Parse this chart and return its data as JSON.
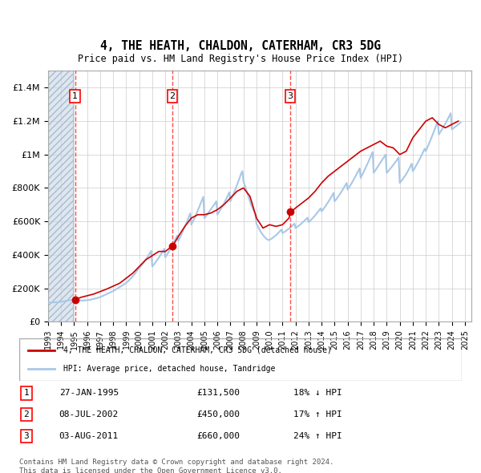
{
  "title": "4, THE HEATH, CHALDON, CATERHAM, CR3 5DG",
  "subtitle": "Price paid vs. HM Land Registry's House Price Index (HPI)",
  "title_fontsize": 11,
  "subtitle_fontsize": 9,
  "xlabel": "",
  "ylabel": "",
  "ylim": [
    0,
    1500000
  ],
  "yticks": [
    0,
    200000,
    400000,
    600000,
    800000,
    1000000,
    1200000,
    1400000
  ],
  "ytick_labels": [
    "£0",
    "£200K",
    "£400K",
    "£600K",
    "£800K",
    "£1M",
    "£1.2M",
    "£1.4M"
  ],
  "x_start_year": 1993,
  "x_end_year": 2025,
  "hpi_color": "#a8c8e8",
  "price_color": "#cc0000",
  "hatch_color": "#c8d8e8",
  "background_color": "#dce8f0",
  "plot_bg_color": "#ffffff",
  "grid_color": "#cccccc",
  "sale_dates": [
    "1995-01-27",
    "2002-07-08",
    "2011-08-03"
  ],
  "sale_prices": [
    131500,
    450000,
    660000
  ],
  "sale_labels": [
    "1",
    "2",
    "3"
  ],
  "sale_label_date_texts": [
    "27-JAN-1995",
    "08-JUL-2002",
    "03-AUG-2011"
  ],
  "sale_price_texts": [
    "£131,500",
    "£450,000",
    "£660,000"
  ],
  "sale_hpi_texts": [
    "18% ↓ HPI",
    "17% ↑ HPI",
    "24% ↑ HPI"
  ],
  "legend_label1": "4, THE HEATH, CHALDON, CATERHAM, CR3 5DG (detached house)",
  "legend_label2": "HPI: Average price, detached house, Tandridge",
  "footer_text": "Contains HM Land Registry data © Crown copyright and database right 2024.\nThis data is licensed under the Open Government Licence v3.0.",
  "hpi_data": {
    "years_months": [
      1993.0,
      1993.083,
      1993.167,
      1993.25,
      1993.333,
      1993.417,
      1993.5,
      1993.583,
      1993.667,
      1993.75,
      1993.833,
      1993.917,
      1994.0,
      1994.083,
      1994.167,
      1994.25,
      1994.333,
      1994.417,
      1994.5,
      1994.583,
      1994.667,
      1994.75,
      1994.833,
      1994.917,
      1995.0,
      1995.083,
      1995.167,
      1995.25,
      1995.333,
      1995.417,
      1995.5,
      1995.583,
      1995.667,
      1995.75,
      1995.833,
      1995.917,
      1996.0,
      1996.083,
      1996.167,
      1996.25,
      1996.333,
      1996.417,
      1996.5,
      1996.583,
      1996.667,
      1996.75,
      1996.833,
      1996.917,
      1997.0,
      1997.083,
      1997.167,
      1997.25,
      1997.333,
      1997.417,
      1997.5,
      1997.583,
      1997.667,
      1997.75,
      1997.833,
      1997.917,
      1998.0,
      1998.083,
      1998.167,
      1998.25,
      1998.333,
      1998.417,
      1998.5,
      1998.583,
      1998.667,
      1998.75,
      1998.833,
      1998.917,
      1999.0,
      1999.083,
      1999.167,
      1999.25,
      1999.333,
      1999.417,
      1999.5,
      1999.583,
      1999.667,
      1999.75,
      1999.833,
      1999.917,
      2000.0,
      2000.083,
      2000.167,
      2000.25,
      2000.333,
      2000.417,
      2000.5,
      2000.583,
      2000.667,
      2000.75,
      2000.833,
      2000.917,
      2001.0,
      2001.083,
      2001.167,
      2001.25,
      2001.333,
      2001.417,
      2001.5,
      2001.583,
      2001.667,
      2001.75,
      2001.833,
      2001.917,
      2002.0,
      2002.083,
      2002.167,
      2002.25,
      2002.333,
      2002.417,
      2002.5,
      2002.583,
      2002.667,
      2002.75,
      2002.833,
      2002.917,
      2003.0,
      2003.083,
      2003.167,
      2003.25,
      2003.333,
      2003.417,
      2003.5,
      2003.583,
      2003.667,
      2003.75,
      2003.833,
      2003.917,
      2004.0,
      2004.083,
      2004.167,
      2004.25,
      2004.333,
      2004.417,
      2004.5,
      2004.583,
      2004.667,
      2004.75,
      2004.833,
      2004.917,
      2005.0,
      2005.083,
      2005.167,
      2005.25,
      2005.333,
      2005.417,
      2005.5,
      2005.583,
      2005.667,
      2005.75,
      2005.833,
      2005.917,
      2006.0,
      2006.083,
      2006.167,
      2006.25,
      2006.333,
      2006.417,
      2006.5,
      2006.583,
      2006.667,
      2006.75,
      2006.833,
      2006.917,
      2007.0,
      2007.083,
      2007.167,
      2007.25,
      2007.333,
      2007.417,
      2007.5,
      2007.583,
      2007.667,
      2007.75,
      2007.833,
      2007.917,
      2008.0,
      2008.083,
      2008.167,
      2008.25,
      2008.333,
      2008.417,
      2008.5,
      2008.583,
      2008.667,
      2008.75,
      2008.833,
      2008.917,
      2009.0,
      2009.083,
      2009.167,
      2009.25,
      2009.333,
      2009.417,
      2009.5,
      2009.583,
      2009.667,
      2009.75,
      2009.833,
      2009.917,
      2010.0,
      2010.083,
      2010.167,
      2010.25,
      2010.333,
      2010.417,
      2010.5,
      2010.583,
      2010.667,
      2010.75,
      2010.833,
      2010.917,
      2011.0,
      2011.083,
      2011.167,
      2011.25,
      2011.333,
      2011.417,
      2011.5,
      2011.583,
      2011.667,
      2011.75,
      2011.833,
      2011.917,
      2012.0,
      2012.083,
      2012.167,
      2012.25,
      2012.333,
      2012.417,
      2012.5,
      2012.583,
      2012.667,
      2012.75,
      2012.833,
      2012.917,
      2013.0,
      2013.083,
      2013.167,
      2013.25,
      2013.333,
      2013.417,
      2013.5,
      2013.583,
      2013.667,
      2013.75,
      2013.833,
      2013.917,
      2014.0,
      2014.083,
      2014.167,
      2014.25,
      2014.333,
      2014.417,
      2014.5,
      2014.583,
      2014.667,
      2014.75,
      2014.833,
      2014.917,
      2015.0,
      2015.083,
      2015.167,
      2015.25,
      2015.333,
      2015.417,
      2015.5,
      2015.583,
      2015.667,
      2015.75,
      2015.833,
      2015.917,
      2016.0,
      2016.083,
      2016.167,
      2016.25,
      2016.333,
      2016.417,
      2016.5,
      2016.583,
      2016.667,
      2016.75,
      2016.833,
      2016.917,
      2017.0,
      2017.083,
      2017.167,
      2017.25,
      2017.333,
      2017.417,
      2017.5,
      2017.583,
      2017.667,
      2017.75,
      2017.833,
      2017.917,
      2018.0,
      2018.083,
      2018.167,
      2018.25,
      2018.333,
      2018.417,
      2018.5,
      2018.583,
      2018.667,
      2018.75,
      2018.833,
      2018.917,
      2019.0,
      2019.083,
      2019.167,
      2019.25,
      2019.333,
      2019.417,
      2019.5,
      2019.583,
      2019.667,
      2019.75,
      2019.833,
      2019.917,
      2020.0,
      2020.083,
      2020.167,
      2020.25,
      2020.333,
      2020.417,
      2020.5,
      2020.583,
      2020.667,
      2020.75,
      2020.833,
      2020.917,
      2021.0,
      2021.083,
      2021.167,
      2021.25,
      2021.333,
      2021.417,
      2021.5,
      2021.583,
      2021.667,
      2021.75,
      2021.833,
      2021.917,
      2022.0,
      2022.083,
      2022.167,
      2022.25,
      2022.333,
      2022.417,
      2022.5,
      2022.583,
      2022.667,
      2022.75,
      2022.833,
      2022.917,
      2023.0,
      2023.083,
      2023.167,
      2023.25,
      2023.333,
      2023.417,
      2023.5,
      2023.583,
      2023.667,
      2023.75,
      2023.833,
      2023.917,
      2024.0,
      2024.083,
      2024.167,
      2024.25,
      2024.333,
      2024.417,
      2024.5,
      2024.583,
      2024.667
    ],
    "values": [
      112000,
      113000,
      113500,
      114000,
      114500,
      115000,
      115500,
      116000,
      116500,
      117000,
      117500,
      118000,
      119000,
      120000,
      121000,
      122500,
      124000,
      125000,
      126000,
      127000,
      128000,
      129000,
      130000,
      131000,
      131500,
      130000,
      129000,
      128500,
      128000,
      127500,
      127000,
      126500,
      126000,
      126500,
      127000,
      127500,
      128000,
      129000,
      130000,
      131500,
      133000,
      134500,
      136000,
      137500,
      139000,
      141000,
      143000,
      145000,
      147000,
      150000,
      153000,
      156000,
      159000,
      162000,
      165000,
      168000,
      171000,
      174000,
      177000,
      180000,
      183000,
      187000,
      191000,
      195000,
      199000,
      203000,
      207000,
      211000,
      215000,
      219000,
      223000,
      227000,
      232000,
      238000,
      244000,
      250000,
      257000,
      264000,
      271000,
      279000,
      287000,
      296000,
      305000,
      315000,
      320000,
      328000,
      336000,
      344000,
      353000,
      362000,
      371000,
      381000,
      391000,
      401000,
      412000,
      423000,
      330000,
      338000,
      346000,
      355000,
      364000,
      373000,
      383000,
      393000,
      403000,
      414000,
      425000,
      436000,
      385000,
      395000,
      405000,
      416000,
      427000,
      439000,
      451000,
      463000,
      476000,
      489000,
      502000,
      515000,
      484000,
      497000,
      510000,
      524000,
      538000,
      553000,
      568000,
      583000,
      599000,
      615000,
      631000,
      648000,
      580000,
      593000,
      607000,
      621000,
      636000,
      651000,
      666000,
      682000,
      698000,
      714000,
      730000,
      747000,
      620000,
      628000,
      636000,
      645000,
      654000,
      663000,
      672000,
      681000,
      690000,
      700000,
      710000,
      720000,
      640000,
      650000,
      661000,
      672000,
      683000,
      695000,
      707000,
      720000,
      733000,
      746000,
      760000,
      774000,
      720000,
      735000,
      751000,
      767000,
      783000,
      800000,
      817000,
      834000,
      852000,
      870000,
      888000,
      900000,
      840000,
      820000,
      800000,
      780000,
      760000,
      740000,
      720000,
      700000,
      685000,
      670000,
      658000,
      645000,
      585000,
      572000,
      560000,
      548000,
      537000,
      527000,
      518000,
      510000,
      503000,
      497000,
      492000,
      488000,
      490000,
      493000,
      497000,
      502000,
      507000,
      512000,
      518000,
      524000,
      530000,
      537000,
      544000,
      551000,
      530000,
      534000,
      538000,
      542000,
      547000,
      552000,
      557000,
      562000,
      568000,
      574000,
      580000,
      586000,
      560000,
      564000,
      569000,
      574000,
      579000,
      585000,
      591000,
      597000,
      603000,
      609000,
      615000,
      622000,
      595000,
      601000,
      607000,
      614000,
      621000,
      628000,
      636000,
      644000,
      652000,
      660000,
      669000,
      678000,
      660000,
      668000,
      677000,
      686000,
      695000,
      705000,
      715000,
      725000,
      736000,
      747000,
      758000,
      770000,
      720000,
      728000,
      737000,
      746000,
      755000,
      765000,
      775000,
      785000,
      796000,
      807000,
      818000,
      830000,
      790000,
      800000,
      810000,
      821000,
      832000,
      843000,
      855000,
      867000,
      879000,
      891000,
      904000,
      917000,
      860000,
      873000,
      886000,
      899000,
      913000,
      927000,
      941000,
      955000,
      970000,
      985000,
      1000000,
      1015000,
      890000,
      900000,
      910000,
      920000,
      930000,
      940000,
      950000,
      960000,
      970000,
      980000,
      990000,
      1000000,
      890000,
      897000,
      905000,
      913000,
      921000,
      929000,
      937000,
      946000,
      955000,
      964000,
      973000,
      982000,
      830000,
      838000,
      846000,
      855000,
      864000,
      874000,
      884000,
      895000,
      907000,
      919000,
      932000,
      945000,
      900000,
      910000,
      921000,
      932000,
      944000,
      956000,
      968000,
      981000,
      994000,
      1007000,
      1021000,
      1035000,
      1020000,
      1035000,
      1050000,
      1065000,
      1081000,
      1097000,
      1113000,
      1130000,
      1147000,
      1164000,
      1182000,
      1200000,
      1120000,
      1130000,
      1140000,
      1151000,
      1162000,
      1173000,
      1185000,
      1197000,
      1209000,
      1221000,
      1234000,
      1247000,
      1150000,
      1155000,
      1160000,
      1165000,
      1170000,
      1175000,
      1180000,
      1186000,
      1192000
    ]
  },
  "price_line_data": {
    "x": [
      1994.9,
      1995.07,
      1995.5,
      1996.5,
      1997.5,
      1998.5,
      1999.5,
      2000.5,
      2001.5,
      2002.0,
      2002.5,
      2002.55,
      2003.0,
      2003.5,
      2004.0,
      2004.5,
      2005.0,
      2005.5,
      2006.0,
      2006.5,
      2007.0,
      2007.5,
      2008.0,
      2008.5,
      2009.0,
      2009.5,
      2010.0,
      2010.5,
      2011.0,
      2011.5,
      2011.6,
      2011.7,
      2012.0,
      2012.5,
      2013.0,
      2013.5,
      2014.0,
      2014.5,
      2015.0,
      2015.5,
      2016.0,
      2016.5,
      2017.0,
      2017.5,
      2018.0,
      2018.5,
      2019.0,
      2019.5,
      2020.0,
      2020.5,
      2021.0,
      2021.5,
      2022.0,
      2022.5,
      2023.0,
      2023.5,
      2024.0,
      2024.5
    ],
    "y": [
      131500,
      131500,
      145000,
      165000,
      195000,
      230000,
      290000,
      370000,
      420000,
      420000,
      450000,
      450000,
      510000,
      570000,
      620000,
      640000,
      640000,
      650000,
      670000,
      700000,
      740000,
      780000,
      800000,
      750000,
      620000,
      560000,
      580000,
      570000,
      580000,
      620000,
      660000,
      660000,
      680000,
      710000,
      740000,
      780000,
      830000,
      870000,
      900000,
      930000,
      960000,
      990000,
      1020000,
      1040000,
      1060000,
      1080000,
      1050000,
      1040000,
      1000000,
      1020000,
      1100000,
      1150000,
      1200000,
      1220000,
      1180000,
      1160000,
      1180000,
      1200000
    ]
  }
}
